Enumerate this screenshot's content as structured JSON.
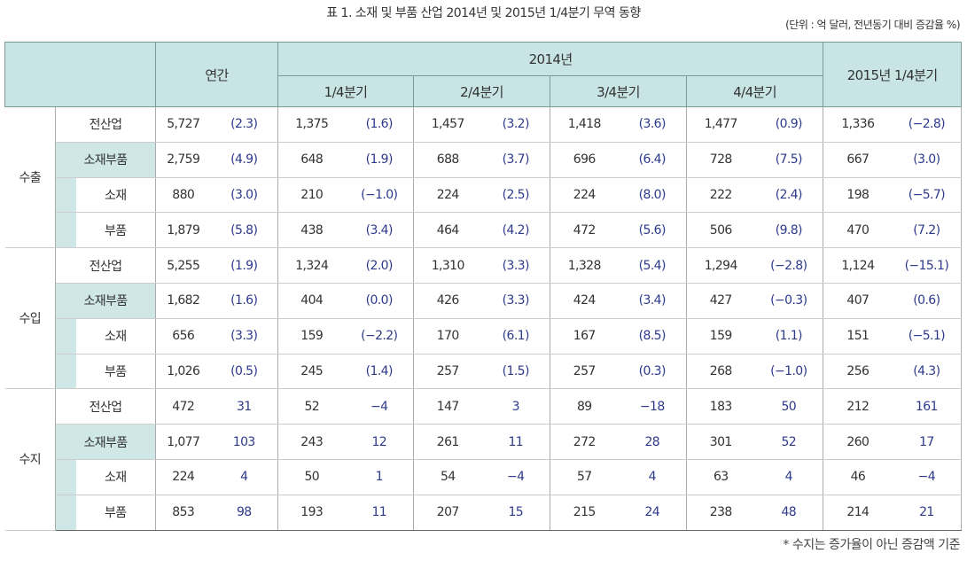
{
  "title": "표 1. 소재 및 부품 산업 2014년 및 2015년 1/4분기 무역 동향",
  "unit": "(단위 : 억 달러, 전년동기 대비 증감율 %)",
  "header": {
    "annual": "연간",
    "year2014": "2014년",
    "quarters": [
      "1/4분기",
      "2/4분기",
      "3/4분기",
      "4/4분기"
    ],
    "q2015": "2015년 1/4분기"
  },
  "groups": [
    {
      "name": "수출",
      "rows": [
        {
          "label": "전산업",
          "values": [
            "5,727",
            "(2.3)",
            "1,375",
            "(1.6)",
            "1,457",
            "(3.2)",
            "1,418",
            "(3.6)",
            "1,477",
            "(0.9)",
            "1,336",
            "(−2.8)"
          ]
        },
        {
          "label": "소재부품",
          "values": [
            "2,759",
            "(4.9)",
            "648",
            "(1.9)",
            "688",
            "(3.7)",
            "696",
            "(6.4)",
            "728",
            "(7.5)",
            "667",
            "(3.0)"
          ]
        },
        {
          "label": "소재",
          "values": [
            "880",
            "(3.0)",
            "210",
            "(−1.0)",
            "224",
            "(2.5)",
            "224",
            "(8.0)",
            "222",
            "(2.4)",
            "198",
            "(−5.7)"
          ]
        },
        {
          "label": "부품",
          "values": [
            "1,879",
            "(5.8)",
            "438",
            "(3.4)",
            "464",
            "(4.2)",
            "472",
            "(5.6)",
            "506",
            "(9.8)",
            "470",
            "(7.2)"
          ]
        }
      ]
    },
    {
      "name": "수입",
      "rows": [
        {
          "label": "전산업",
          "values": [
            "5,255",
            "(1.9)",
            "1,324",
            "(2.0)",
            "1,310",
            "(3.3)",
            "1,328",
            "(5.4)",
            "1,294",
            "(−2.8)",
            "1,124",
            "(−15.1)"
          ]
        },
        {
          "label": "소재부품",
          "values": [
            "1,682",
            "(1.6)",
            "404",
            "(0.0)",
            "426",
            "(3.3)",
            "424",
            "(3.4)",
            "427",
            "(−0.3)",
            "407",
            "(0.6)"
          ]
        },
        {
          "label": "소재",
          "values": [
            "656",
            "(3.3)",
            "159",
            "(−2.2)",
            "170",
            "(6.1)",
            "167",
            "(8.5)",
            "159",
            "(1.1)",
            "151",
            "(−5.1)"
          ]
        },
        {
          "label": "부품",
          "values": [
            "1,026",
            "(0.5)",
            "245",
            "(1.4)",
            "257",
            "(1.5)",
            "257",
            "(0.3)",
            "268",
            "(−1.0)",
            "256",
            "(4.3)"
          ]
        }
      ]
    },
    {
      "name": "수지",
      "rows": [
        {
          "label": "전산업",
          "values": [
            "472",
            "31",
            "52",
            "−4",
            "147",
            "3",
            "89",
            "−18",
            "183",
            "50",
            "212",
            "161"
          ]
        },
        {
          "label": "소재부품",
          "values": [
            "1,077",
            "103",
            "243",
            "12",
            "261",
            "11",
            "272",
            "28",
            "301",
            "52",
            "260",
            "17"
          ]
        },
        {
          "label": "소재",
          "values": [
            "224",
            "4",
            "50",
            "1",
            "54",
            "−4",
            "57",
            "4",
            "63",
            "4",
            "46",
            "−4"
          ]
        },
        {
          "label": "부품",
          "values": [
            "853",
            "98",
            "193",
            "11",
            "207",
            "15",
            "215",
            "24",
            "238",
            "48",
            "214",
            "21"
          ]
        }
      ]
    }
  ],
  "footnote": "* 수지는 증가율이 아닌 증감액 기준"
}
